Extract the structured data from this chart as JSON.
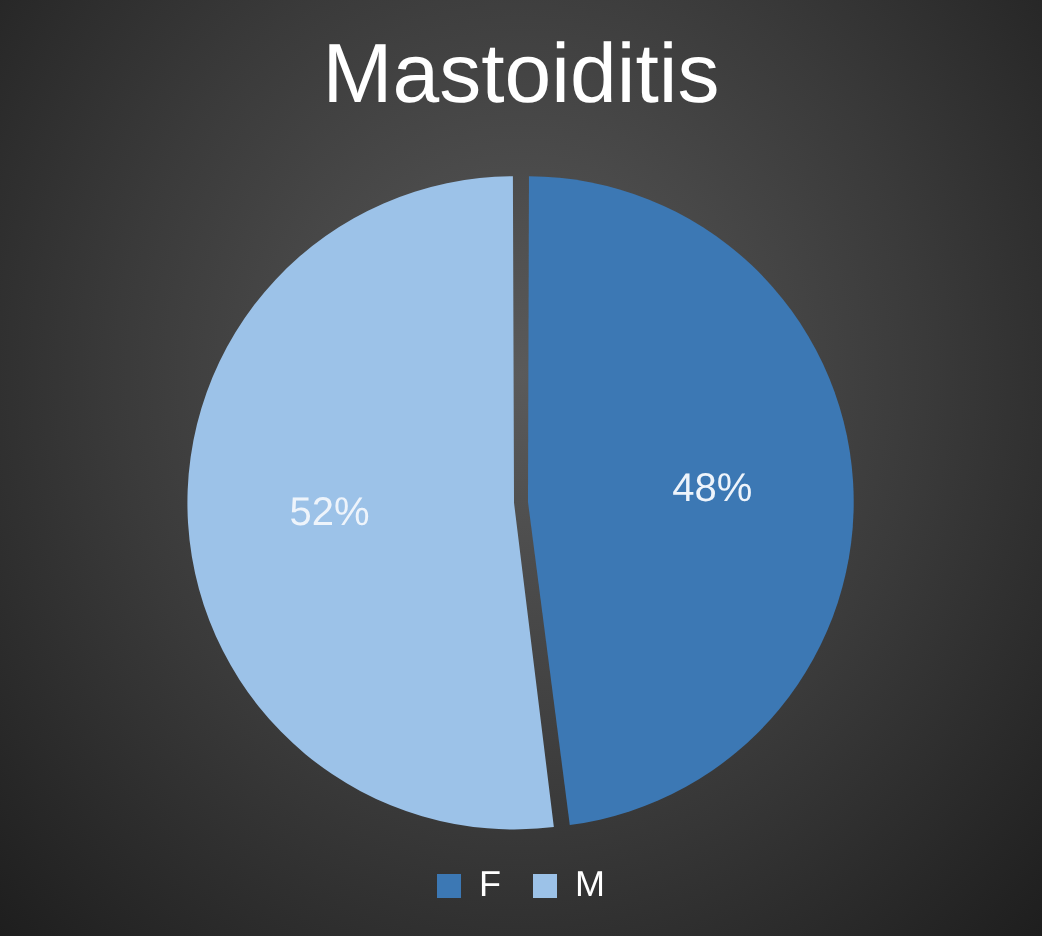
{
  "chart_data": {
    "type": "pie",
    "title": "Mastoiditis",
    "categories": [
      "F",
      "M"
    ],
    "values": [
      48,
      52
    ],
    "colors": [
      "#3c78b4",
      "#9cc2e8"
    ],
    "value_labels": [
      "48%",
      "52%"
    ],
    "legend": "bottom"
  }
}
